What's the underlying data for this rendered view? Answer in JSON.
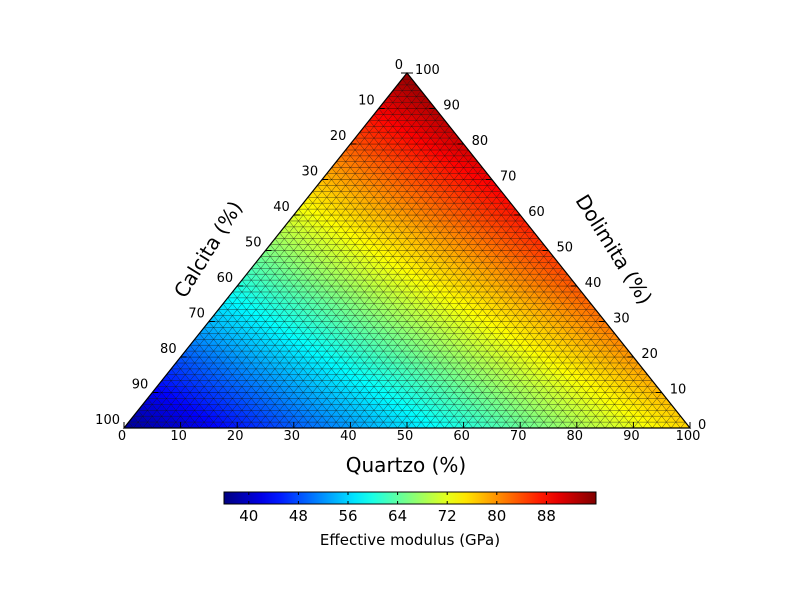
{
  "chart_data": {
    "type": "heatmap",
    "subtype": "ternary",
    "axes": {
      "bottom": {
        "label": "Quartzo (%)",
        "ticks": [
          0,
          10,
          20,
          30,
          40,
          50,
          60,
          70,
          80,
          90,
          100
        ]
      },
      "left": {
        "label": "Calcita (%)",
        "ticks": [
          0,
          10,
          20,
          30,
          40,
          50,
          60,
          70,
          80,
          90,
          100
        ]
      },
      "right": {
        "label": "Dolimita (%)",
        "ticks": [
          0,
          10,
          20,
          30,
          40,
          50,
          60,
          70,
          80,
          90,
          100
        ]
      }
    },
    "corner_values": {
      "calcita_pure": 37,
      "quartzo_pure": 76,
      "dolimita_pure": 95
    },
    "grid_divisions": 60,
    "colormap": "jet",
    "colorbar": {
      "label": "Effective modulus (GPa)",
      "ticks": [
        40,
        48,
        56,
        64,
        72,
        80,
        88
      ],
      "range": [
        36,
        96
      ],
      "orientation": "horizontal",
      "location": "bottom"
    },
    "mesh_edge_color": "#000000"
  }
}
